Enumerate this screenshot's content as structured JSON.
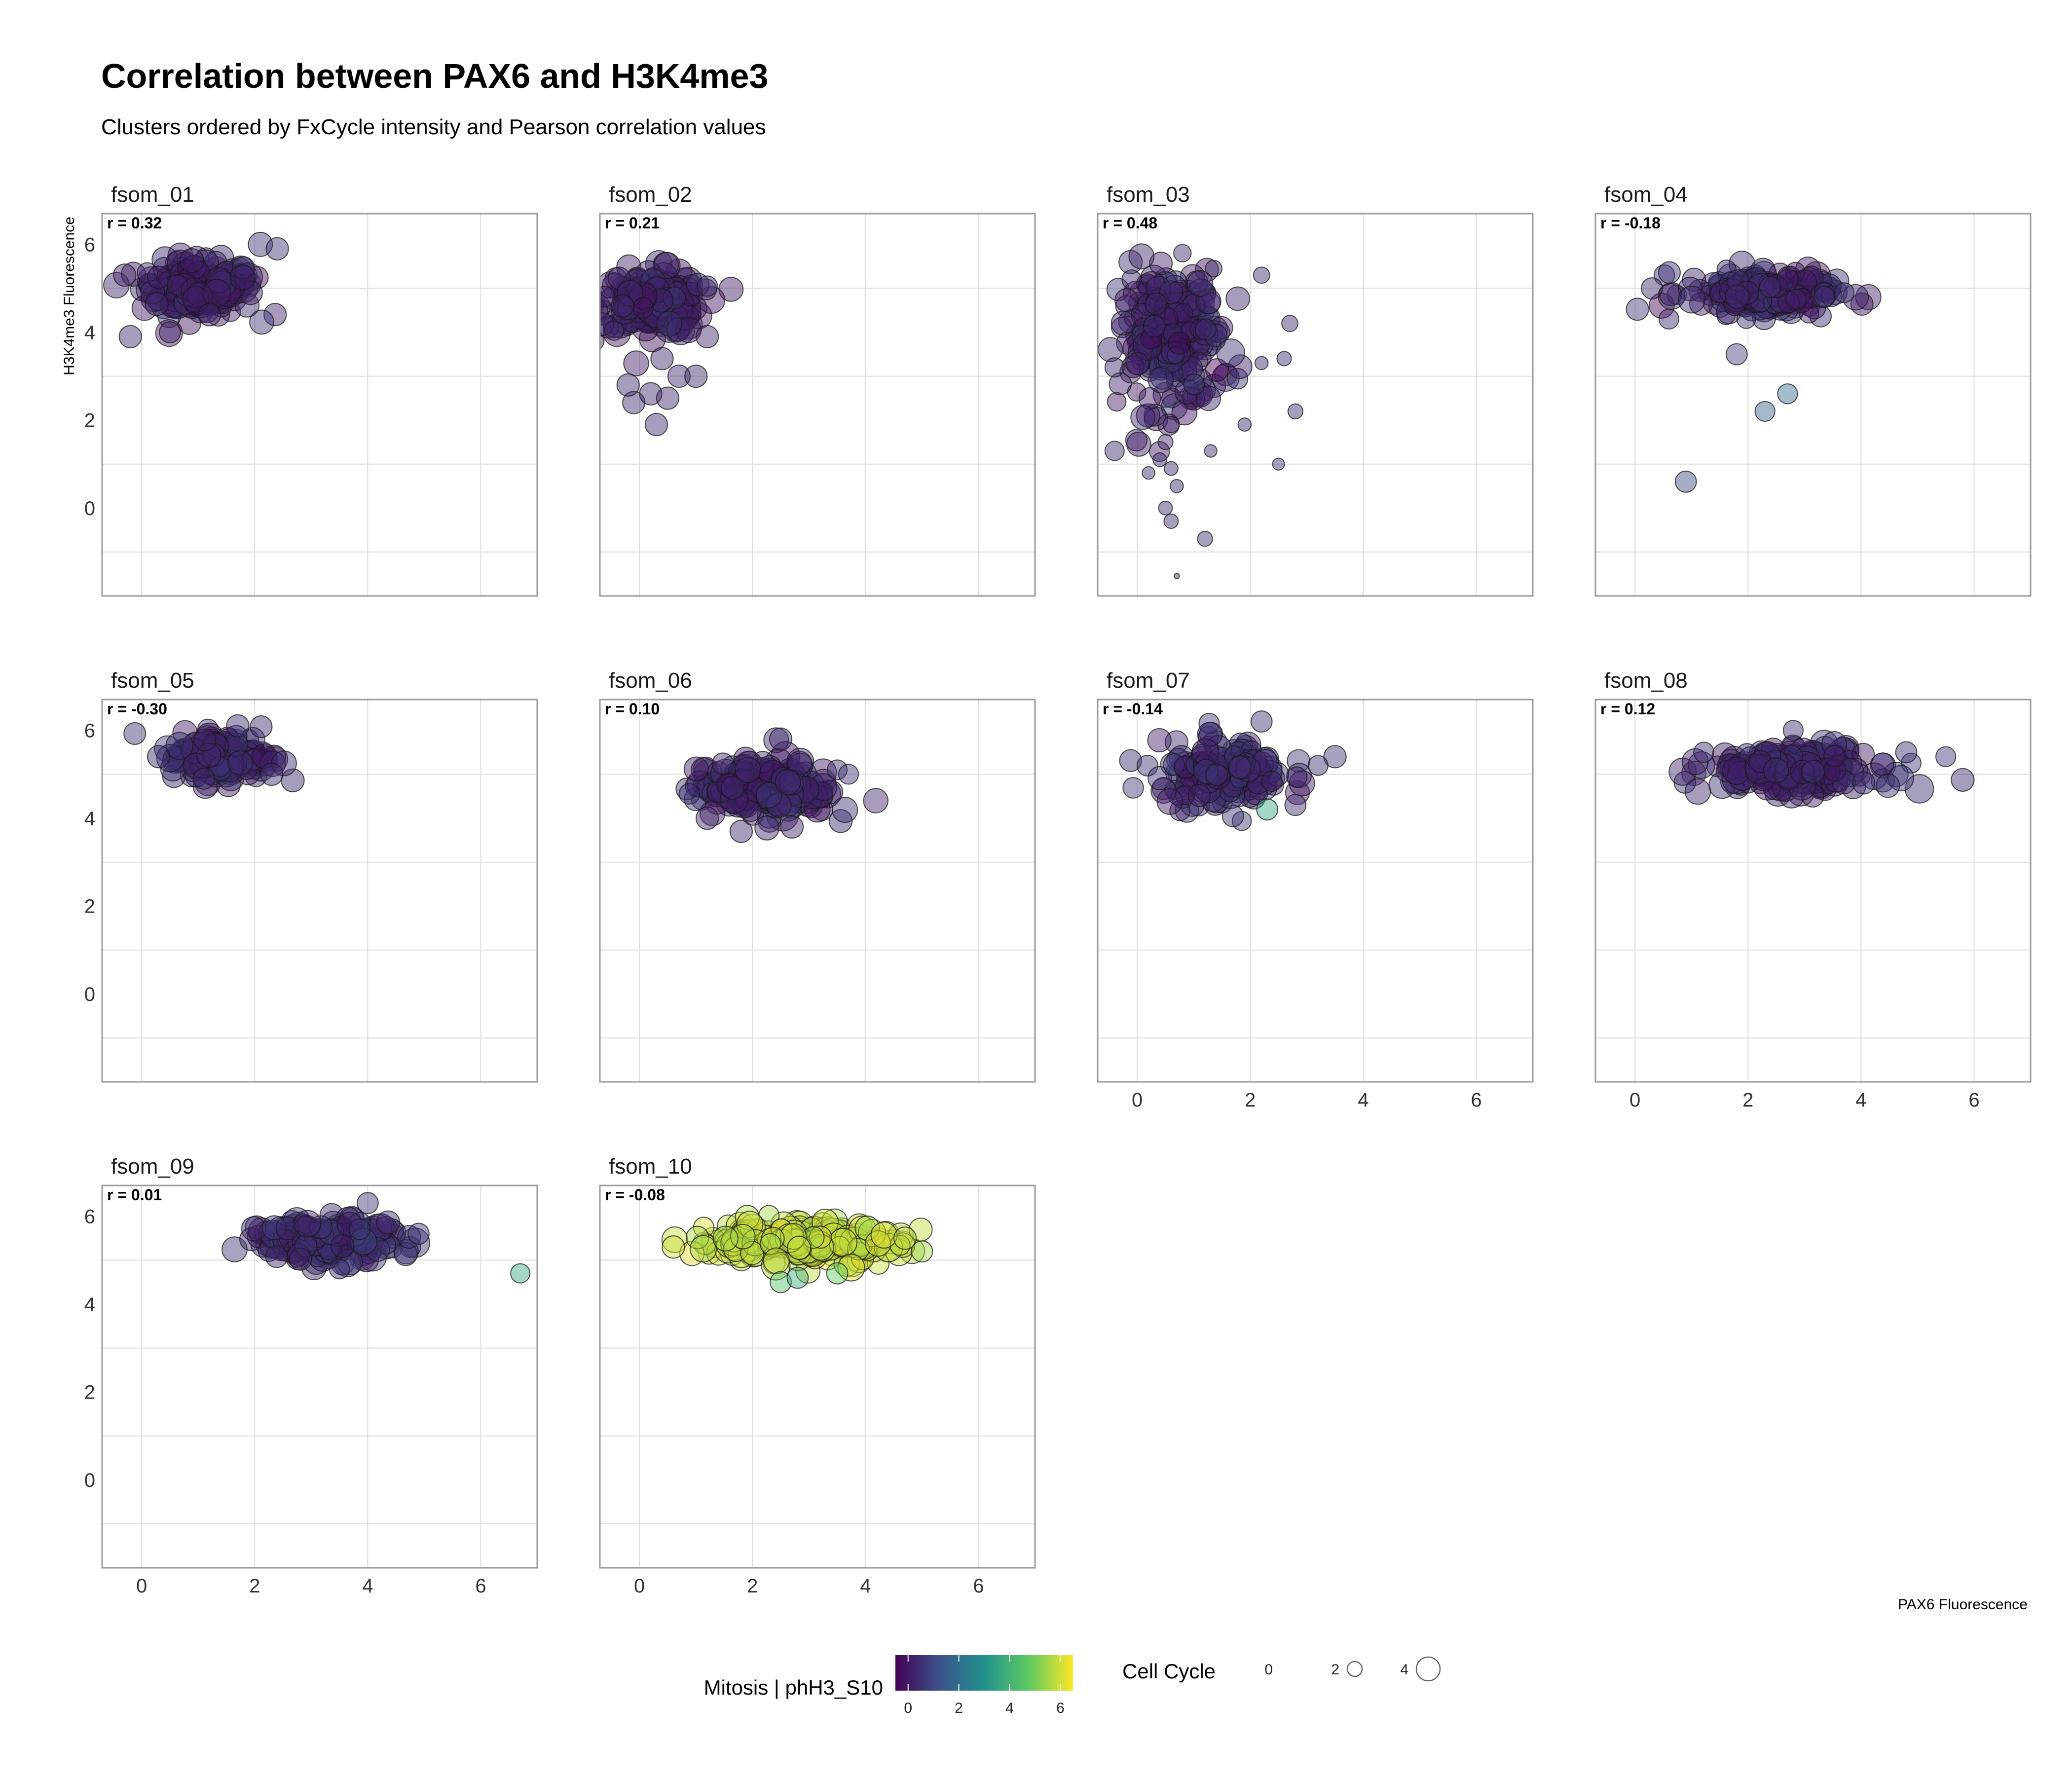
{
  "chart_data": {
    "type": "scatter",
    "title": "Correlation between PAX6 and H3K4me3",
    "subtitle": "Clusters ordered by FxCycle intensity and Pearson correlation values",
    "xlabel": "PAX6 Fluorescence",
    "ylabel": "H3K4me3 Fluorescence",
    "xlim": [
      -0.7,
      7
    ],
    "ylim": [
      -2,
      6.7
    ],
    "x_ticks": [
      "0",
      "2",
      "4",
      "6"
    ],
    "y_ticks": [
      "0",
      "2",
      "4",
      "6"
    ],
    "grid": true,
    "color_legend": {
      "title": "Mitosis | phH3_S10",
      "ticks": [
        "0",
        "2",
        "4",
        "6"
      ],
      "range": [
        -0.5,
        6.5
      ]
    },
    "size_legend": {
      "title": "Cell Cycle",
      "ticks": [
        "0",
        "2",
        "4"
      ]
    },
    "legend_position": "bottom",
    "panels": [
      {
        "name": "fsom_01",
        "r_label": "r = 0.32",
        "cluster": {
          "cx": 1.0,
          "cy": 5.0,
          "sx": 0.5,
          "sy": 0.3,
          "n": 200,
          "color": 0.2,
          "size": 3.2
        },
        "points": [
          {
            "x": 2.1,
            "y": 6.0,
            "c": 0.5,
            "s": 3.3
          },
          {
            "x": 2.4,
            "y": 5.9,
            "c": 0.5,
            "s": 3.0
          },
          {
            "x": -0.2,
            "y": 3.9,
            "c": 0.3,
            "s": 3.0
          },
          {
            "x": 0.5,
            "y": 4.0,
            "c": 0.3,
            "s": 2.8
          },
          {
            "x": -0.3,
            "y": 5.3,
            "c": 0.3,
            "s": 3.0
          },
          {
            "x": 1.2,
            "y": 4.4,
            "c": 0.2,
            "s": 3.0
          }
        ]
      },
      {
        "name": "fsom_02",
        "r_label": "r = 0.21",
        "cluster": {
          "cx": 0.2,
          "cy": 4.7,
          "sx": 0.45,
          "sy": 0.35,
          "n": 200,
          "color": 0.2,
          "size": 3.2
        },
        "points": [
          {
            "x": -0.1,
            "y": 2.4,
            "c": 0.3,
            "s": 3.0
          },
          {
            "x": 0.2,
            "y": 2.6,
            "c": 0.3,
            "s": 3.0
          },
          {
            "x": 0.3,
            "y": 1.9,
            "c": 0.3,
            "s": 3.0
          },
          {
            "x": 0.5,
            "y": 2.5,
            "c": 0.3,
            "s": 3.0
          },
          {
            "x": 0.7,
            "y": 3.0,
            "c": 0.3,
            "s": 3.0
          },
          {
            "x": 1.0,
            "y": 3.0,
            "c": 0.3,
            "s": 3.0
          },
          {
            "x": 1.2,
            "y": 3.9,
            "c": 0.3,
            "s": 3.0
          },
          {
            "x": -0.3,
            "y": 4.6,
            "c": 0.3,
            "s": 3.0
          },
          {
            "x": 0.4,
            "y": 3.4,
            "c": 0.3,
            "s": 3.0
          },
          {
            "x": -0.2,
            "y": 2.8,
            "c": 0.3,
            "s": 3.0
          }
        ]
      },
      {
        "name": "fsom_03",
        "r_label": "r = 0.48",
        "cluster": {
          "cx": 0.6,
          "cy": 3.8,
          "sx": 0.45,
          "sy": 0.8,
          "n": 240,
          "color": 0.3,
          "size": 3.0
        },
        "points": [
          {
            "x": 0.6,
            "y": 1.9,
            "c": 0.3,
            "s": 2.0
          },
          {
            "x": 0.5,
            "y": 1.5,
            "c": 0.3,
            "s": 1.8
          },
          {
            "x": 0.4,
            "y": 1.1,
            "c": 0.3,
            "s": 1.6
          },
          {
            "x": 0.6,
            "y": 0.9,
            "c": 0.3,
            "s": 1.6
          },
          {
            "x": 0.7,
            "y": 0.5,
            "c": 0.3,
            "s": 1.5
          },
          {
            "x": 0.5,
            "y": 0.0,
            "c": 0.3,
            "s": 1.6
          },
          {
            "x": 0.6,
            "y": -0.3,
            "c": 0.3,
            "s": 1.7
          },
          {
            "x": -0.4,
            "y": 1.3,
            "c": 0.3,
            "s": 2.5
          },
          {
            "x": 0.2,
            "y": 0.8,
            "c": 0.3,
            "s": 1.4
          },
          {
            "x": 1.2,
            "y": -0.7,
            "c": 0.5,
            "s": 1.8
          },
          {
            "x": 0.7,
            "y": -1.55,
            "c": 0.5,
            "s": 0.2
          },
          {
            "x": 1.3,
            "y": 1.3,
            "c": 0.3,
            "s": 1.4
          },
          {
            "x": 1.9,
            "y": 1.9,
            "c": 0.3,
            "s": 1.5
          },
          {
            "x": 2.5,
            "y": 1.0,
            "c": 0.5,
            "s": 1.3
          },
          {
            "x": 2.8,
            "y": 2.2,
            "c": 0.3,
            "s": 1.8
          },
          {
            "x": 2.6,
            "y": 3.4,
            "c": 0.3,
            "s": 1.7
          },
          {
            "x": 2.2,
            "y": 3.3,
            "c": 0.3,
            "s": 1.5
          },
          {
            "x": 2.7,
            "y": 4.2,
            "c": 0.3,
            "s": 2.0
          },
          {
            "x": 0.8,
            "y": 5.8,
            "c": 0.3,
            "s": 2.2
          },
          {
            "x": -0.1,
            "y": 5.2,
            "c": 0.3,
            "s": 2.5
          },
          {
            "x": 2.2,
            "y": 5.3,
            "c": 0.3,
            "s": 2.0
          },
          {
            "x": -0.4,
            "y": 3.2,
            "c": 0.3,
            "s": 2.5
          }
        ]
      },
      {
        "name": "fsom_04",
        "r_label": "r = -0.18",
        "cluster": {
          "cx": 2.2,
          "cy": 4.9,
          "sx": 0.65,
          "sy": 0.25,
          "n": 200,
          "color": 0.3,
          "size": 3.0
        },
        "points": [
          {
            "x": 1.8,
            "y": 3.5,
            "c": 0.8,
            "s": 2.8
          },
          {
            "x": 2.3,
            "y": 2.2,
            "c": 1.7,
            "s": 2.6
          },
          {
            "x": 2.7,
            "y": 2.6,
            "c": 2.0,
            "s": 2.6
          },
          {
            "x": 0.9,
            "y": 0.6,
            "c": 1.0,
            "s": 2.8
          },
          {
            "x": 0.6,
            "y": 4.3,
            "c": 0.3,
            "s": 2.6
          },
          {
            "x": 3.7,
            "y": 4.9,
            "c": 0.5,
            "s": 2.6
          },
          {
            "x": 0.3,
            "y": 5.0,
            "c": 0.3,
            "s": 2.8
          }
        ]
      },
      {
        "name": "fsom_05",
        "r_label": "r = -0.30",
        "cluster": {
          "cx": 1.4,
          "cy": 5.4,
          "sx": 0.45,
          "sy": 0.25,
          "n": 200,
          "color": 0.3,
          "size": 3.3
        },
        "points": [
          {
            "x": 1.7,
            "y": 6.1,
            "c": 0.4,
            "s": 3.0
          },
          {
            "x": 0.3,
            "y": 5.4,
            "c": 0.4,
            "s": 3.0
          },
          {
            "x": 1.1,
            "y": 4.9,
            "c": 0.4,
            "s": 2.8
          },
          {
            "x": 2.3,
            "y": 5.0,
            "c": 0.4,
            "s": 3.0
          }
        ]
      },
      {
        "name": "fsom_06",
        "r_label": "r = 0.10",
        "cluster": {
          "cx": 2.2,
          "cy": 4.7,
          "sx": 0.6,
          "sy": 0.3,
          "n": 220,
          "color": 0.3,
          "size": 3.3
        },
        "points": [
          {
            "x": 2.5,
            "y": 5.8,
            "c": 0.4,
            "s": 3.0
          },
          {
            "x": 3.5,
            "y": 5.1,
            "c": 0.5,
            "s": 2.6
          },
          {
            "x": 3.7,
            "y": 5.0,
            "c": 0.5,
            "s": 2.6
          },
          {
            "x": 1.2,
            "y": 4.0,
            "c": 0.3,
            "s": 3.0
          },
          {
            "x": 1.8,
            "y": 3.7,
            "c": 0.3,
            "s": 3.0
          },
          {
            "x": 2.7,
            "y": 3.8,
            "c": 0.3,
            "s": 3.0
          }
        ]
      },
      {
        "name": "fsom_07",
        "r_label": "r = -0.14",
        "cluster": {
          "cx": 1.5,
          "cy": 5.0,
          "sx": 0.55,
          "sy": 0.35,
          "n": 190,
          "color": 0.4,
          "size": 3.0
        },
        "points": [
          {
            "x": 2.2,
            "y": 6.2,
            "c": 0.5,
            "s": 2.8
          },
          {
            "x": 2.3,
            "y": 4.2,
            "c": 3.6,
            "s": 2.8
          },
          {
            "x": 3.5,
            "y": 5.4,
            "c": 0.5,
            "s": 3.0
          },
          {
            "x": 2.8,
            "y": 4.3,
            "c": 0.4,
            "s": 2.8
          },
          {
            "x": 3.2,
            "y": 5.2,
            "c": 0.4,
            "s": 2.6
          }
        ]
      },
      {
        "name": "fsom_08",
        "r_label": "r = 0.12",
        "cluster": {
          "cx": 2.8,
          "cy": 5.1,
          "sx": 0.7,
          "sy": 0.25,
          "n": 220,
          "color": 0.3,
          "size": 3.3
        },
        "points": [
          {
            "x": 5.5,
            "y": 5.4,
            "c": 0.6,
            "s": 2.6
          },
          {
            "x": 4.8,
            "y": 5.5,
            "c": 0.4,
            "s": 2.8
          },
          {
            "x": 2.8,
            "y": 6.0,
            "c": 0.4,
            "s": 2.6
          }
        ]
      },
      {
        "name": "fsom_09",
        "r_label": "r = 0.01",
        "cluster": {
          "cx": 3.3,
          "cy": 5.45,
          "sx": 0.6,
          "sy": 0.22,
          "n": 220,
          "color": 0.4,
          "size": 3.2
        },
        "points": [
          {
            "x": 6.7,
            "y": 4.7,
            "c": 3.6,
            "s": 2.5
          },
          {
            "x": 4.0,
            "y": 6.3,
            "c": 0.5,
            "s": 2.8
          },
          {
            "x": 4.9,
            "y": 5.6,
            "c": 0.6,
            "s": 2.8
          },
          {
            "x": 3.5,
            "y": 4.8,
            "c": 0.4,
            "s": 2.6
          }
        ]
      },
      {
        "name": "fsom_10",
        "r_label": "r = -0.08",
        "cluster": {
          "cx": 2.8,
          "cy": 5.4,
          "sx": 0.9,
          "sy": 0.22,
          "n": 220,
          "color": 5.8,
          "size": 3.3
        },
        "points": [
          {
            "x": 5.0,
            "y": 5.2,
            "c": 5.5,
            "s": 2.8
          },
          {
            "x": 2.5,
            "y": 4.5,
            "c": 4.5,
            "s": 2.8
          },
          {
            "x": 2.8,
            "y": 4.6,
            "c": 3.8,
            "s": 2.8
          },
          {
            "x": 3.5,
            "y": 4.7,
            "c": 4.8,
            "s": 2.8
          },
          {
            "x": 0.6,
            "y": 5.3,
            "c": 6.0,
            "s": 3.0
          },
          {
            "x": 4.7,
            "y": 5.5,
            "c": 5.8,
            "s": 3.0
          }
        ]
      }
    ]
  }
}
